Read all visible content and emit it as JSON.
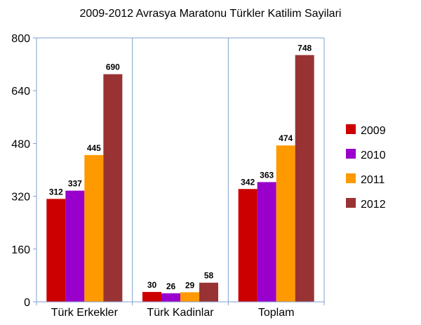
{
  "chart_data": {
    "type": "bar",
    "title": "2009-2012 Avrasya Maratonu Türkler Katilim Sayilari",
    "categories": [
      "Türk Erkekler",
      "Türk Kadinlar",
      "Toplam"
    ],
    "series": [
      {
        "name": "2009",
        "values": [
          312,
          30,
          342
        ],
        "color": "#cc0000"
      },
      {
        "name": "2010",
        "values": [
          337,
          26,
          363
        ],
        "color": "#9900cc"
      },
      {
        "name": "2011",
        "values": [
          445,
          29,
          474
        ],
        "color": "#ff9900"
      },
      {
        "name": "2012",
        "values": [
          690,
          58,
          748
        ],
        "color": "#993333"
      }
    ],
    "ylim": [
      0,
      800
    ],
    "yticks": [
      0,
      160,
      320,
      480,
      640,
      800
    ],
    "ytick_labels": [
      "0",
      "160",
      "320",
      "480",
      "640",
      "800"
    ],
    "legend": "right",
    "grid": "vertical",
    "grid_color": "#7f9fcf",
    "xlabel": "",
    "ylabel": ""
  }
}
